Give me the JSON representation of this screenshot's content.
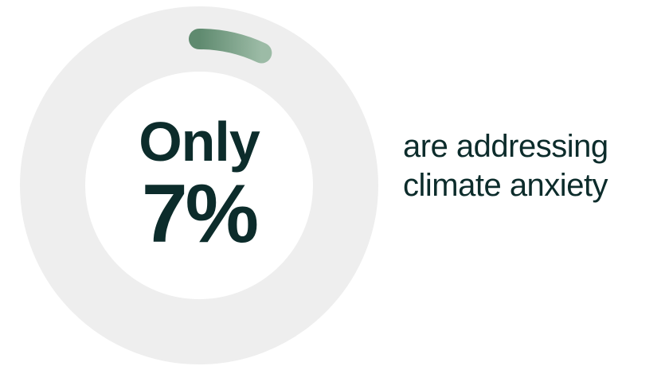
{
  "chart_data": {
    "type": "pie",
    "value_percent": 7,
    "categories": [
      "addressing climate anxiety"
    ],
    "values": [
      7
    ]
  },
  "headline": {
    "prefix": "Only",
    "value": "7%"
  },
  "caption": {
    "line1": "are addressing",
    "line2": "climate anxiety"
  },
  "colors": {
    "track": "#eeeeee",
    "arc_start": "#5f8a6f",
    "arc_end": "#9cbba6",
    "text": "#0c2c2b",
    "background": "#ffffff"
  }
}
